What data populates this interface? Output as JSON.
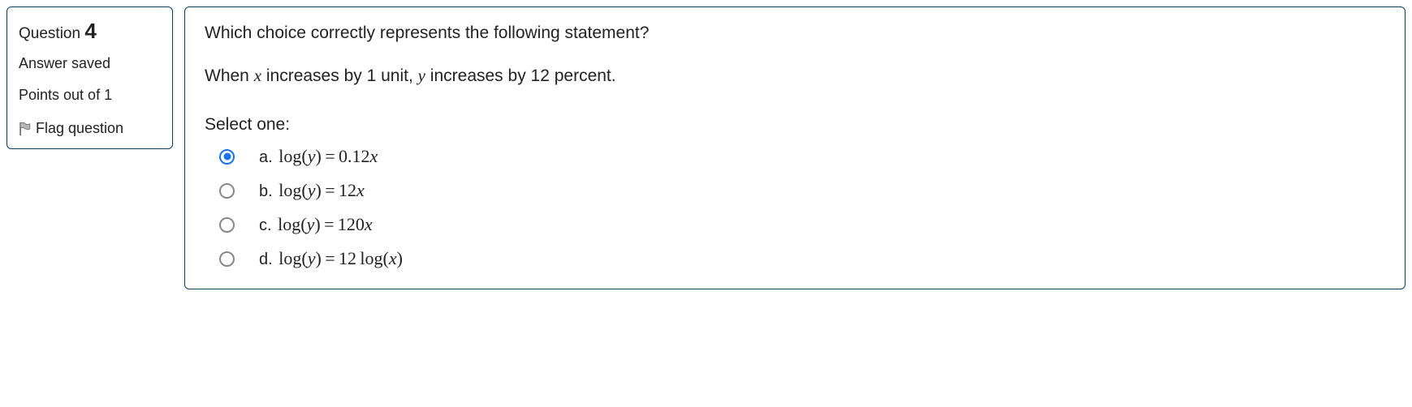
{
  "info": {
    "question_label": "Question",
    "question_number": "4",
    "answer_status": "Answer saved",
    "points": "Points out of 1",
    "flag_label": "Flag question"
  },
  "content": {
    "prompt": "Which choice correctly represents the following statement?",
    "statement_prefix": "When ",
    "statement_var1": "x",
    "statement_mid": " increases by 1 unit, ",
    "statement_var2": "y",
    "statement_suffix": " increases by 12 percent.",
    "select_label": "Select one:",
    "options": [
      {
        "letter": "a.",
        "formula": "log(y) = 0.12x",
        "selected": true
      },
      {
        "letter": "b.",
        "formula": "log(y) = 12x",
        "selected": false
      },
      {
        "letter": "c.",
        "formula": "log(y) = 120x",
        "selected": false
      },
      {
        "letter": "d.",
        "formula": "log(y) = 12 log(x)",
        "selected": false
      }
    ]
  },
  "colors": {
    "panel_border": "#0a3d62",
    "radio_selected": "#1a73e8",
    "radio_unselected": "#888",
    "text": "#222",
    "flag_fill": "#808080"
  }
}
